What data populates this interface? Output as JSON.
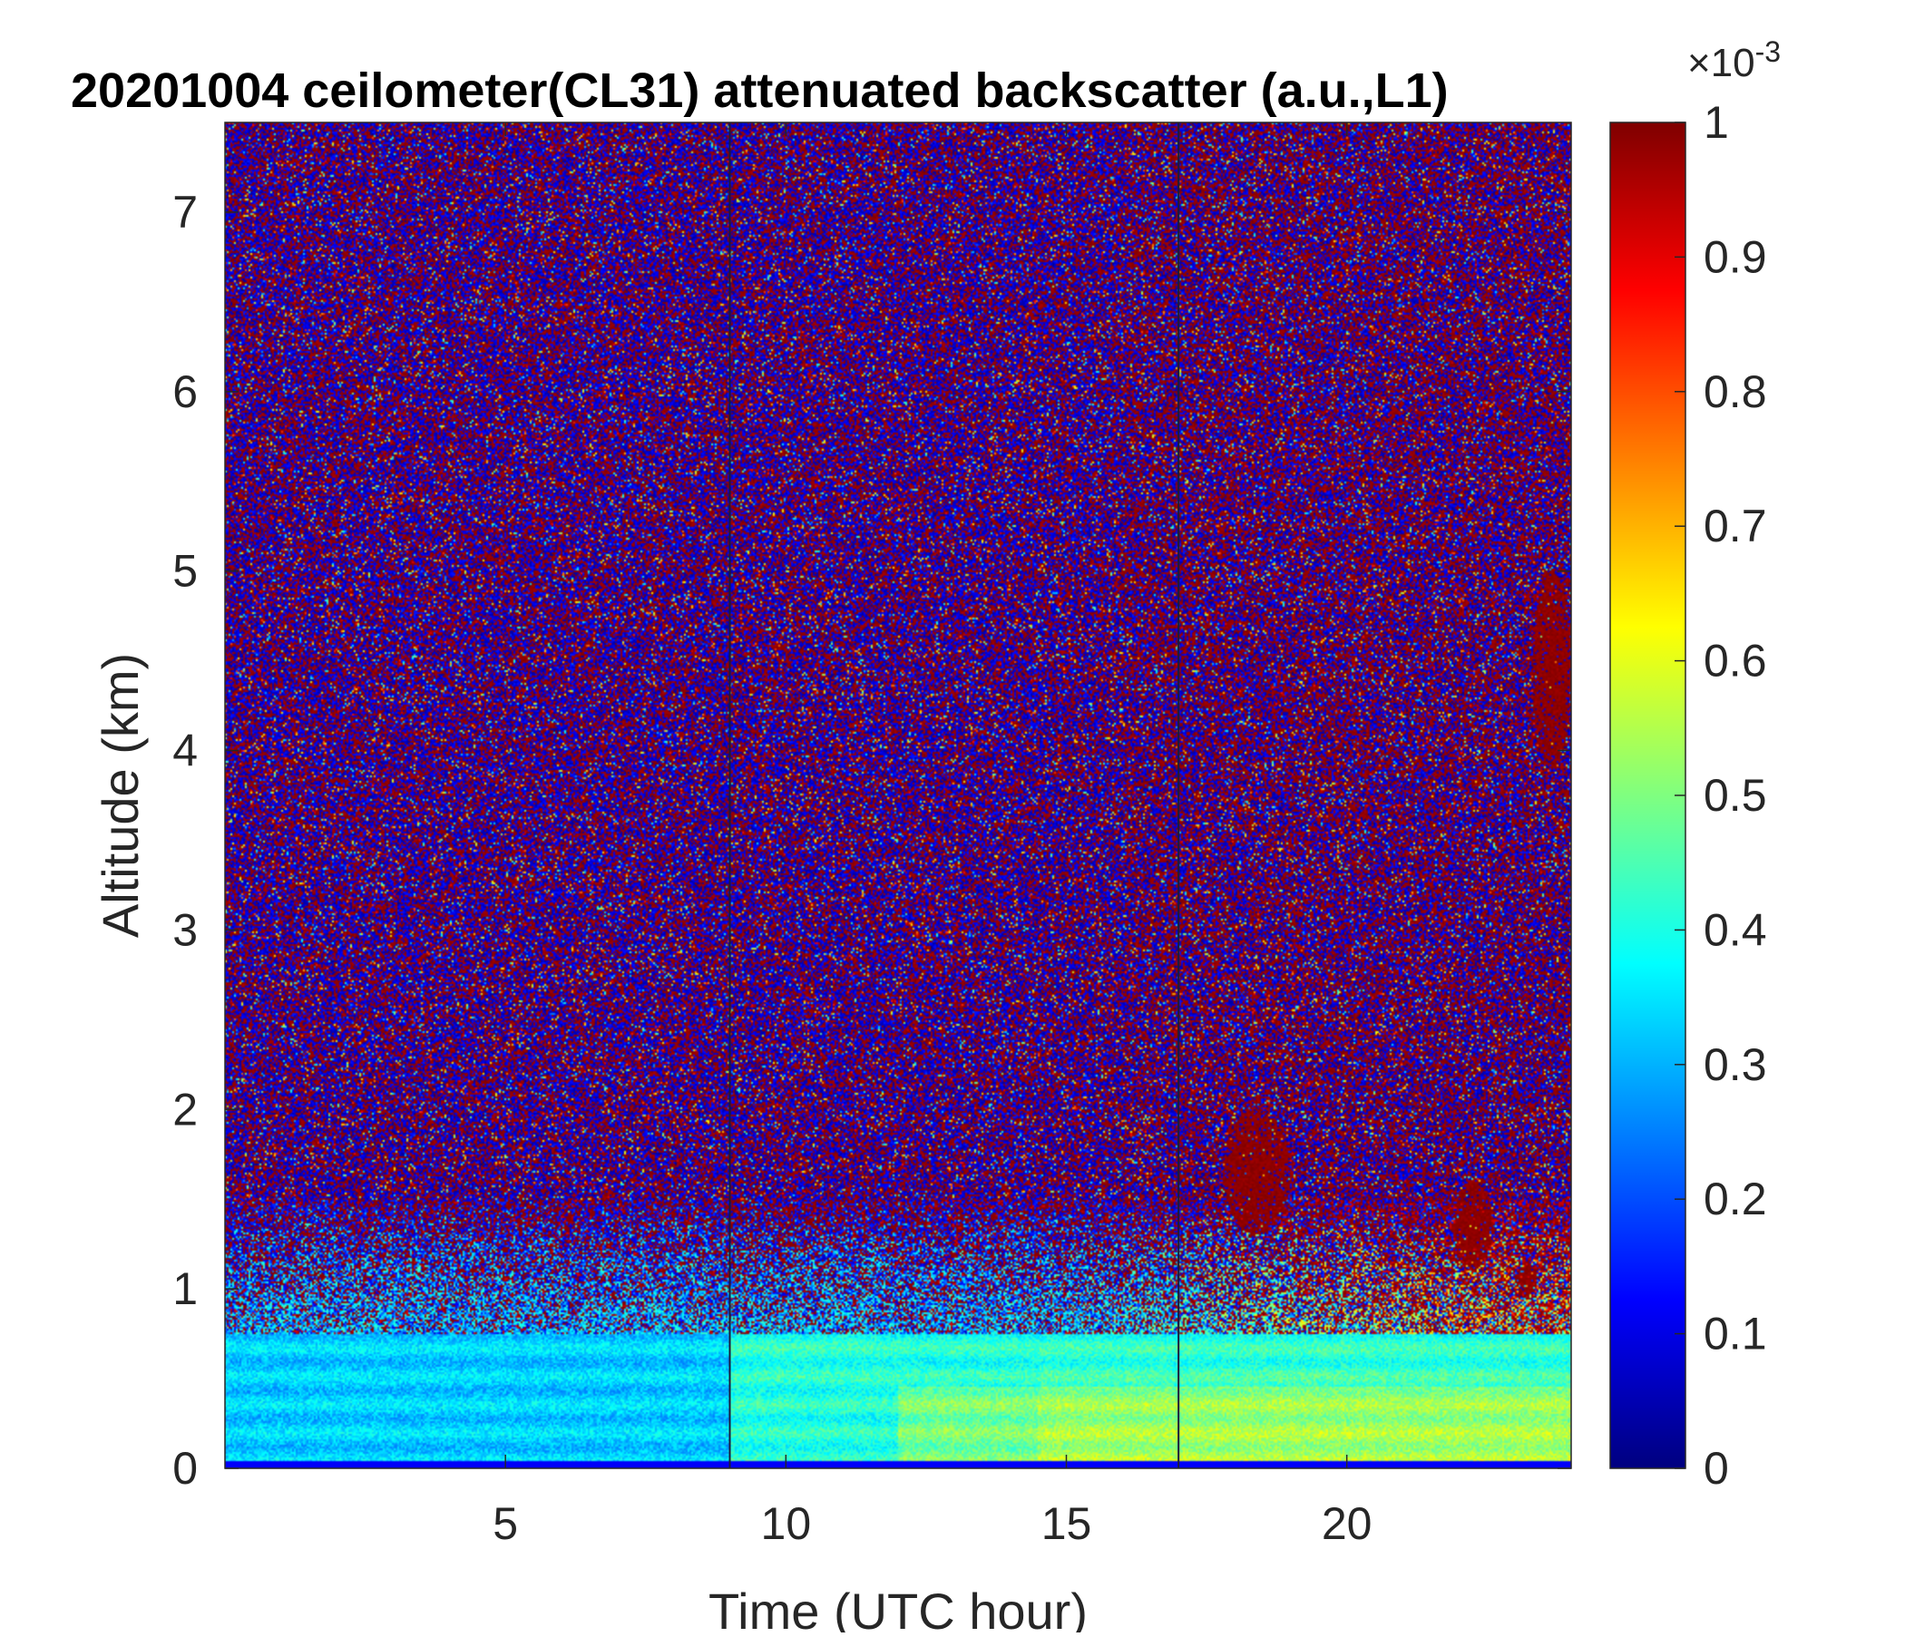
{
  "chart_data": {
    "type": "heatmap",
    "title": "20201004 ceilometer(CL31) attenuated backscatter (a.u.,L1)",
    "xlabel": "Time (UTC hour)",
    "ylabel": "Altitude (km)",
    "xlim": [
      0,
      24
    ],
    "ylim": [
      0,
      7.5
    ],
    "x_ticks": [
      5,
      10,
      15,
      20
    ],
    "y_ticks": [
      0,
      1,
      2,
      3,
      4,
      5,
      6,
      7
    ],
    "colorbar": {
      "colormap": "jet",
      "range": [
        0,
        1
      ],
      "ticks": [
        0,
        0.1,
        0.2,
        0.3,
        0.4,
        0.5,
        0.6,
        0.7,
        0.8,
        0.9,
        1
      ],
      "exponent_label": "×10",
      "exponent_value": "-3"
    },
    "features": [
      {
        "kind": "noise-field",
        "note": "speckled high/low noise above ~1.5 km",
        "x_range": [
          0,
          24
        ],
        "y_range": [
          1.5,
          7.5
        ]
      },
      {
        "kind": "boundary-layer",
        "note": "aerosol layer 0-0.7 km, elevated after 14h",
        "x_range": [
          0,
          24
        ],
        "y_range": [
          0,
          0.7
        ]
      },
      {
        "kind": "cloud",
        "x_range": [
          23.3,
          24
        ],
        "y_range": [
          3.9,
          5.0
        ]
      },
      {
        "kind": "cloud",
        "x_range": [
          17.8,
          19.0
        ],
        "y_range": [
          1.3,
          2.0
        ]
      },
      {
        "kind": "cloud",
        "x_range": [
          21.9,
          22.6
        ],
        "y_range": [
          1.1,
          1.6
        ]
      },
      {
        "kind": "cloud",
        "x_range": [
          23.0,
          23.4
        ],
        "y_range": [
          0.95,
          1.15
        ]
      }
    ],
    "vertical_lines_x": [
      9,
      17
    ]
  },
  "colors": {
    "jet_low": "#00007f",
    "jet_high": "#7f0000",
    "axis": "#262626"
  }
}
